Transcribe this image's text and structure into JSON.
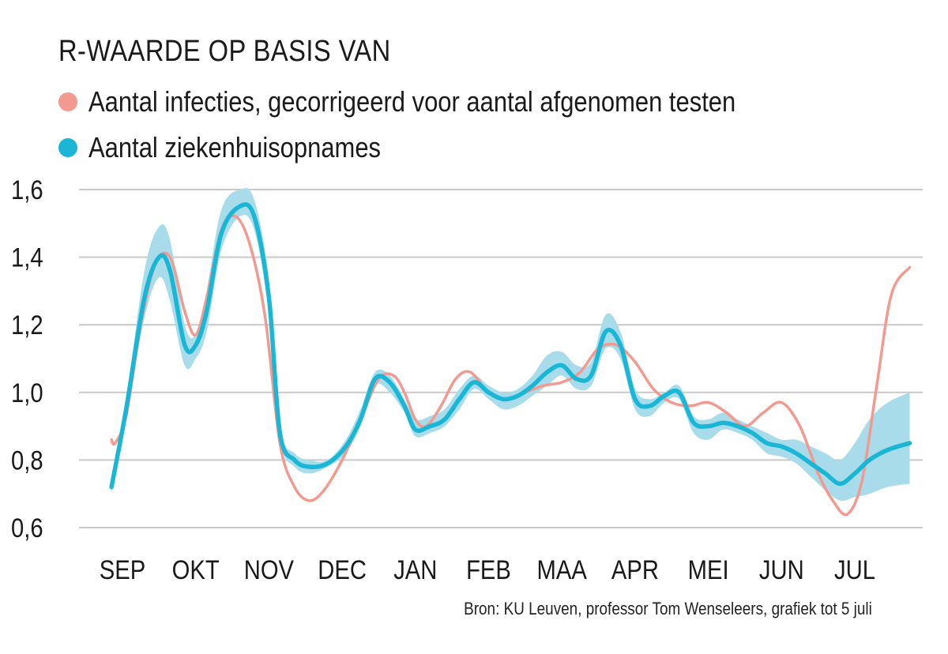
{
  "title": "R-WAARDE OP BASIS VAN",
  "source": "Bron: KU Leuven, professor Tom Wenseleers, grafiek tot 5 juli",
  "colors": {
    "infections": "#f29a90",
    "hospital": "#1ab6d6",
    "band": "#a8dcea",
    "grid": "#c9c9c9"
  },
  "chart_data": {
    "type": "line",
    "title": "R-WAARDE OP BASIS VAN",
    "ylim": [
      0.6,
      1.6
    ],
    "xlim": [
      0,
      10.95
    ],
    "yticks": [
      {
        "v": 0.6,
        "label": "0,6"
      },
      {
        "v": 0.8,
        "label": "0,8"
      },
      {
        "v": 1.0,
        "label": "1,0"
      },
      {
        "v": 1.2,
        "label": "1,2"
      },
      {
        "v": 1.4,
        "label": "1,4"
      },
      {
        "v": 1.6,
        "label": "1,6"
      }
    ],
    "categories": [
      "SEP",
      "OKT",
      "NOV",
      "DEC",
      "JAN",
      "FEB",
      "MAA",
      "APR",
      "MEI",
      "JUN",
      "JUL"
    ],
    "grid": true,
    "legend_position": "top-left",
    "series": [
      {
        "name": "Aantal infecties, gecorrigeerd voor aantal afgenomen testen",
        "color": "#f29a90",
        "x": [
          -0.15,
          -0.1,
          0.05,
          0.25,
          0.45,
          0.65,
          0.85,
          1.0,
          1.15,
          1.35,
          1.55,
          1.75,
          1.95,
          2.15,
          2.35,
          2.55,
          2.75,
          3.0,
          3.25,
          3.5,
          3.7,
          3.85,
          4.0,
          4.15,
          4.35,
          4.55,
          4.75,
          5.0,
          5.25,
          5.5,
          5.75,
          6.0,
          6.25,
          6.5,
          6.75,
          7.0,
          7.25,
          7.5,
          7.75,
          8.0,
          8.25,
          8.5,
          8.75,
          9.0,
          9.25,
          9.5,
          9.7,
          9.9,
          10.1,
          10.3,
          10.5,
          10.75
        ],
        "values": [
          0.86,
          0.85,
          0.93,
          1.2,
          1.38,
          1.4,
          1.24,
          1.17,
          1.28,
          1.48,
          1.52,
          1.43,
          1.22,
          0.85,
          0.72,
          0.68,
          0.71,
          0.8,
          0.92,
          1.04,
          1.05,
          1.0,
          0.92,
          0.9,
          0.96,
          1.04,
          1.06,
          1.0,
          0.98,
          1.0,
          1.02,
          1.03,
          1.06,
          1.13,
          1.14,
          1.09,
          1.01,
          0.97,
          0.96,
          0.97,
          0.94,
          0.9,
          0.94,
          0.97,
          0.9,
          0.76,
          0.68,
          0.64,
          0.74,
          1.02,
          1.29,
          1.37
        ]
      },
      {
        "name": "Aantal ziekenhuisopnames",
        "color": "#1ab6d6",
        "x": [
          -0.15,
          0.05,
          0.3,
          0.5,
          0.65,
          0.85,
          1.0,
          1.15,
          1.35,
          1.6,
          1.8,
          2.0,
          2.15,
          2.35,
          2.55,
          2.8,
          3.05,
          3.25,
          3.45,
          3.65,
          3.85,
          4.0,
          4.2,
          4.4,
          4.6,
          4.8,
          5.0,
          5.2,
          5.4,
          5.6,
          5.8,
          6.0,
          6.2,
          6.4,
          6.6,
          6.8,
          7.0,
          7.2,
          7.4,
          7.6,
          7.8,
          8.0,
          8.2,
          8.4,
          8.6,
          8.8,
          9.0,
          9.2,
          9.4,
          9.6,
          9.8,
          10.0,
          10.2,
          10.45,
          10.75
        ],
        "values": [
          0.72,
          0.95,
          1.28,
          1.4,
          1.36,
          1.14,
          1.14,
          1.24,
          1.47,
          1.55,
          1.52,
          1.28,
          0.88,
          0.8,
          0.78,
          0.79,
          0.84,
          0.92,
          1.04,
          1.03,
          0.96,
          0.89,
          0.9,
          0.92,
          0.98,
          1.03,
          1.0,
          0.98,
          0.99,
          1.02,
          1.06,
          1.08,
          1.04,
          1.05,
          1.18,
          1.14,
          0.98,
          0.96,
          0.99,
          1.0,
          0.91,
          0.9,
          0.91,
          0.9,
          0.88,
          0.85,
          0.84,
          0.82,
          0.79,
          0.76,
          0.73,
          0.76,
          0.8,
          0.83,
          0.85
        ]
      }
    ],
    "hospital_band": {
      "x": [
        -0.15,
        0.05,
        0.3,
        0.5,
        0.65,
        0.85,
        1.0,
        1.15,
        1.35,
        1.6,
        1.8,
        2.0,
        2.15,
        2.35,
        2.55,
        2.8,
        3.05,
        3.25,
        3.45,
        3.65,
        3.85,
        4.0,
        4.2,
        4.4,
        4.6,
        4.8,
        5.0,
        5.2,
        5.4,
        5.6,
        5.8,
        6.0,
        6.2,
        6.4,
        6.6,
        6.8,
        7.0,
        7.2,
        7.4,
        7.6,
        7.8,
        8.0,
        8.2,
        8.4,
        8.6,
        8.8,
        9.0,
        9.2,
        9.4,
        9.6,
        9.8,
        10.0,
        10.2,
        10.45,
        10.75
      ],
      "upper": [
        0.74,
        0.98,
        1.36,
        1.49,
        1.45,
        1.2,
        1.17,
        1.3,
        1.54,
        1.6,
        1.57,
        1.33,
        0.9,
        0.82,
        0.8,
        0.8,
        0.86,
        0.95,
        1.06,
        1.05,
        0.98,
        0.92,
        0.93,
        0.95,
        1.01,
        1.05,
        1.02,
        1.0,
        1.01,
        1.05,
        1.11,
        1.12,
        1.08,
        1.09,
        1.23,
        1.18,
        1.01,
        0.98,
        1.0,
        1.02,
        0.93,
        0.92,
        0.94,
        0.92,
        0.9,
        0.88,
        0.86,
        0.86,
        0.84,
        0.82,
        0.8,
        0.85,
        0.92,
        0.97,
        1.0
      ],
      "lower": [
        0.7,
        0.92,
        1.22,
        1.34,
        1.27,
        1.08,
        1.1,
        1.18,
        1.42,
        1.52,
        1.48,
        1.23,
        0.86,
        0.78,
        0.76,
        0.78,
        0.82,
        0.9,
        1.02,
        1.0,
        0.94,
        0.87,
        0.88,
        0.9,
        0.95,
        1.01,
        0.98,
        0.95,
        0.96,
        0.99,
        1.02,
        1.05,
        1.01,
        1.02,
        1.13,
        1.1,
        0.95,
        0.93,
        0.97,
        0.98,
        0.88,
        0.86,
        0.89,
        0.88,
        0.86,
        0.82,
        0.81,
        0.79,
        0.75,
        0.71,
        0.68,
        0.69,
        0.7,
        0.72,
        0.73
      ]
    }
  }
}
